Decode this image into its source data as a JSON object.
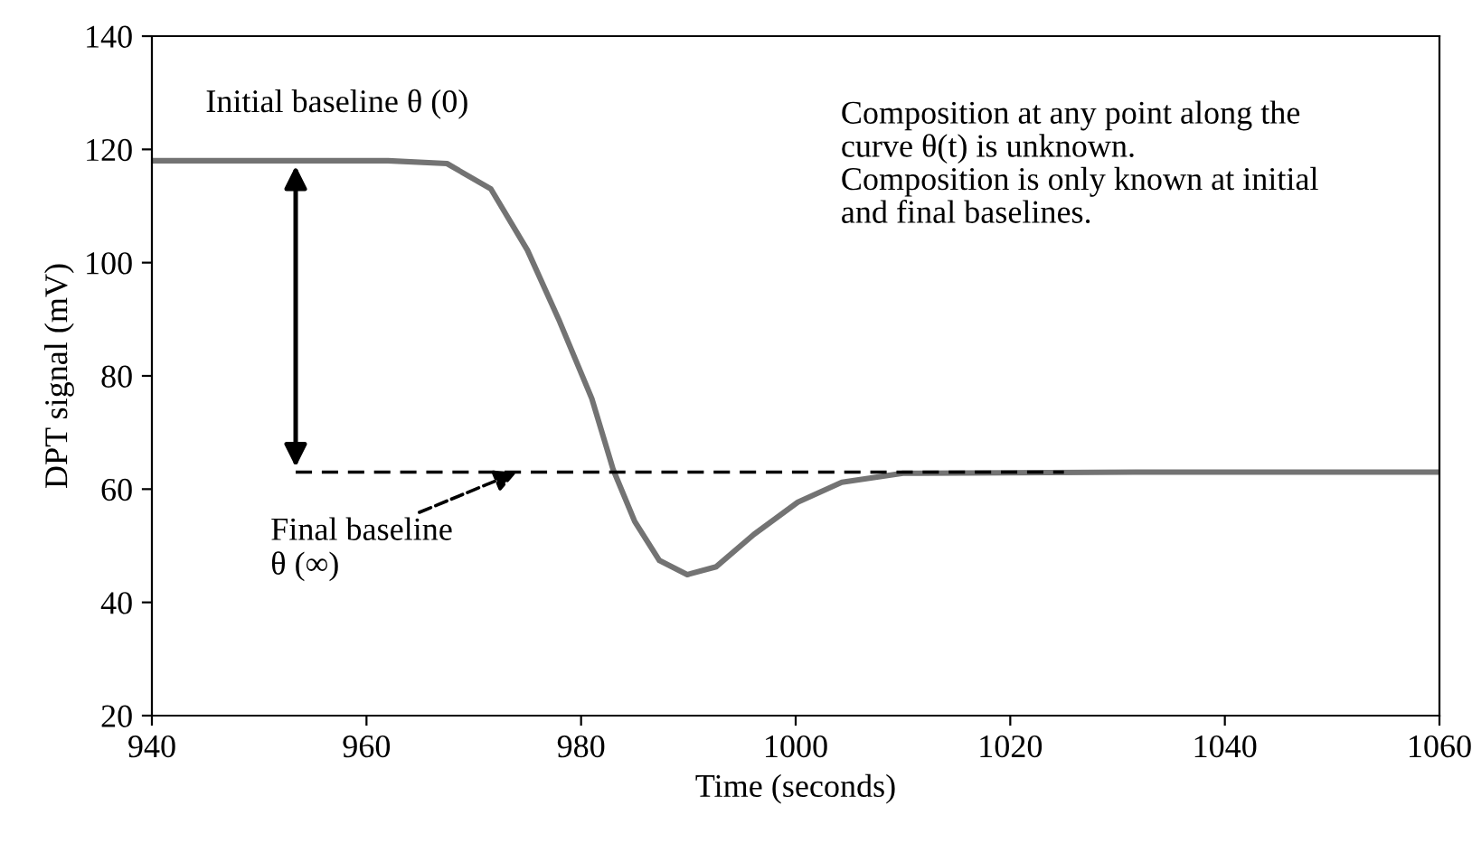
{
  "chart_data": {
    "type": "line",
    "xlabel": "Time (seconds)",
    "ylabel": "DPT signal (mV)",
    "xlim": [
      940,
      1060
    ],
    "xticks": [
      940,
      960,
      980,
      1000,
      1020,
      1040,
      1060
    ],
    "ylim": [
      20,
      140
    ],
    "yticks": [
      20,
      40,
      60,
      80,
      100,
      120,
      140
    ],
    "grid": false,
    "marker": "none",
    "series": [
      {
        "color": "#737373",
        "line_style": "solid",
        "x": [
          940,
          962,
          967.5,
          971.6,
          975,
          978,
          981,
          983,
          985,
          987.3,
          989.9,
          992.6,
          996.1,
          1000.2,
          1004.3,
          1010,
          1031.7,
          1060
        ],
        "values": [
          118,
          118,
          117.5,
          113,
          102.2,
          89.6,
          76,
          63.4,
          54.3,
          47.4,
          44.9,
          46.3,
          52,
          57.7,
          61.2,
          62.8,
          63,
          63
        ]
      },
      {
        "color": "#000000",
        "line_style": "dashed",
        "x": [
          953.4,
          1025
        ],
        "values": [
          63,
          63
        ]
      }
    ],
    "annotations": [
      {
        "text": "Initial baseline θ (0)",
        "x": 953.4,
        "y": 118
      },
      {
        "text": "Final baseline\nθ (∞)",
        "x": 974,
        "y": 63
      },
      "Composition at any point along the\ncurve θ(t) is unknown.\nComposition is only known at initial\nand final baselines."
    ]
  }
}
